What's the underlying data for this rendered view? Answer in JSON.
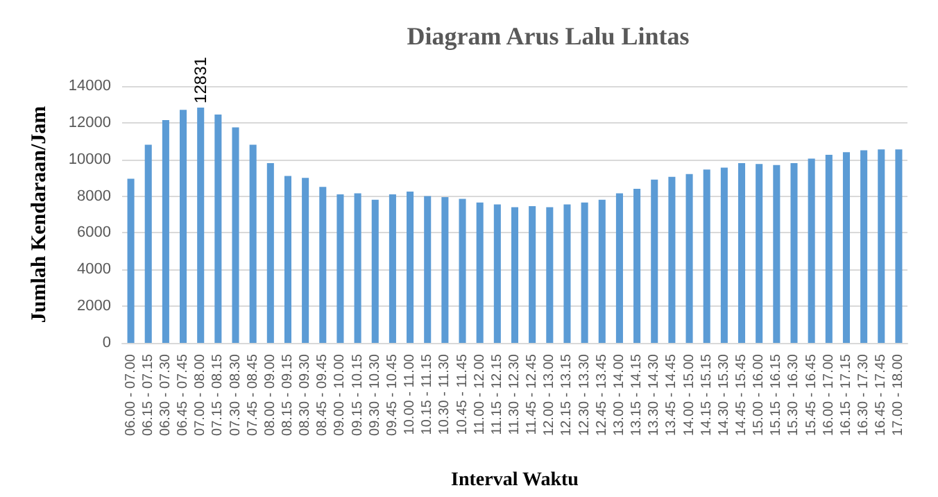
{
  "chart_data": {
    "type": "bar",
    "title": "Diagram Arus Lalu Lintas",
    "xlabel": "Interval Waktu",
    "ylabel": "Jumlah Kendaraan/Jam",
    "categories": [
      "06.00 - 07.00",
      "06.15 - 07.15",
      "06.30 - 07.30",
      "06.45 - 07.45",
      "07.00 - 08.00",
      "07.15 - 08.15",
      "07.30 - 08.30",
      "07.45 - 08.45",
      "08.00 - 09.00",
      "08.15 - 09.15",
      "08.30 - 09.30",
      "08.45 - 09.45",
      "09.00 - 10.00",
      "09.15 - 10.15",
      "09.30 - 10.30",
      "09.45 - 10.45",
      "10.00 - 11.00",
      "10.15 - 11.15",
      "10.30 - 11.30",
      "10.45 - 11.45",
      "11.00 - 12.00",
      "11.15 - 12.15",
      "11.30 - 12.30",
      "11.45 - 12.45",
      "12.00 - 13.00",
      "12.15 - 13.15",
      "12.30 - 13.30",
      "12.45 - 13.45",
      "13.00 - 14.00",
      "13.15 - 14.15",
      "13.30 - 14.30",
      "13.45 - 14.45",
      "14.00 - 15.00",
      "14.15 - 15.15",
      "14.30 - 15.30",
      "14.45 - 15.45",
      "15.00 - 16.00",
      "15.15 - 16.15",
      "15.30 - 16.30",
      "15.45 - 16.45",
      "16.00 - 17.00",
      "16.15 - 17.15",
      "16.30 - 17.30",
      "16.45 - 17.45",
      "17.00 - 18.00"
    ],
    "values": [
      8950,
      10800,
      12150,
      12700,
      12831,
      12450,
      11750,
      10800,
      9800,
      9100,
      9000,
      8500,
      8100,
      8150,
      7800,
      8100,
      8250,
      8000,
      7950,
      7850,
      7650,
      7550,
      7400,
      7450,
      7400,
      7550,
      7650,
      7800,
      8150,
      8400,
      8900,
      9050,
      9200,
      9450,
      9550,
      9800,
      9750,
      9700,
      9800,
      10050,
      10250,
      10400,
      10500,
      10550,
      10550
    ],
    "value_labels": [
      null,
      null,
      null,
      null,
      "12831",
      null,
      null,
      null,
      null,
      null,
      null,
      null,
      null,
      null,
      null,
      null,
      null,
      null,
      null,
      null,
      null,
      null,
      null,
      null,
      null,
      null,
      null,
      null,
      null,
      null,
      null,
      null,
      null,
      null,
      null,
      null,
      null,
      null,
      null,
      null,
      null,
      null,
      null,
      null,
      null
    ],
    "color": "#5b9bd5",
    "ylim": [
      0,
      14000
    ],
    "yticks": [
      0,
      2000,
      4000,
      6000,
      8000,
      10000,
      12000,
      14000
    ],
    "grid": "y"
  }
}
